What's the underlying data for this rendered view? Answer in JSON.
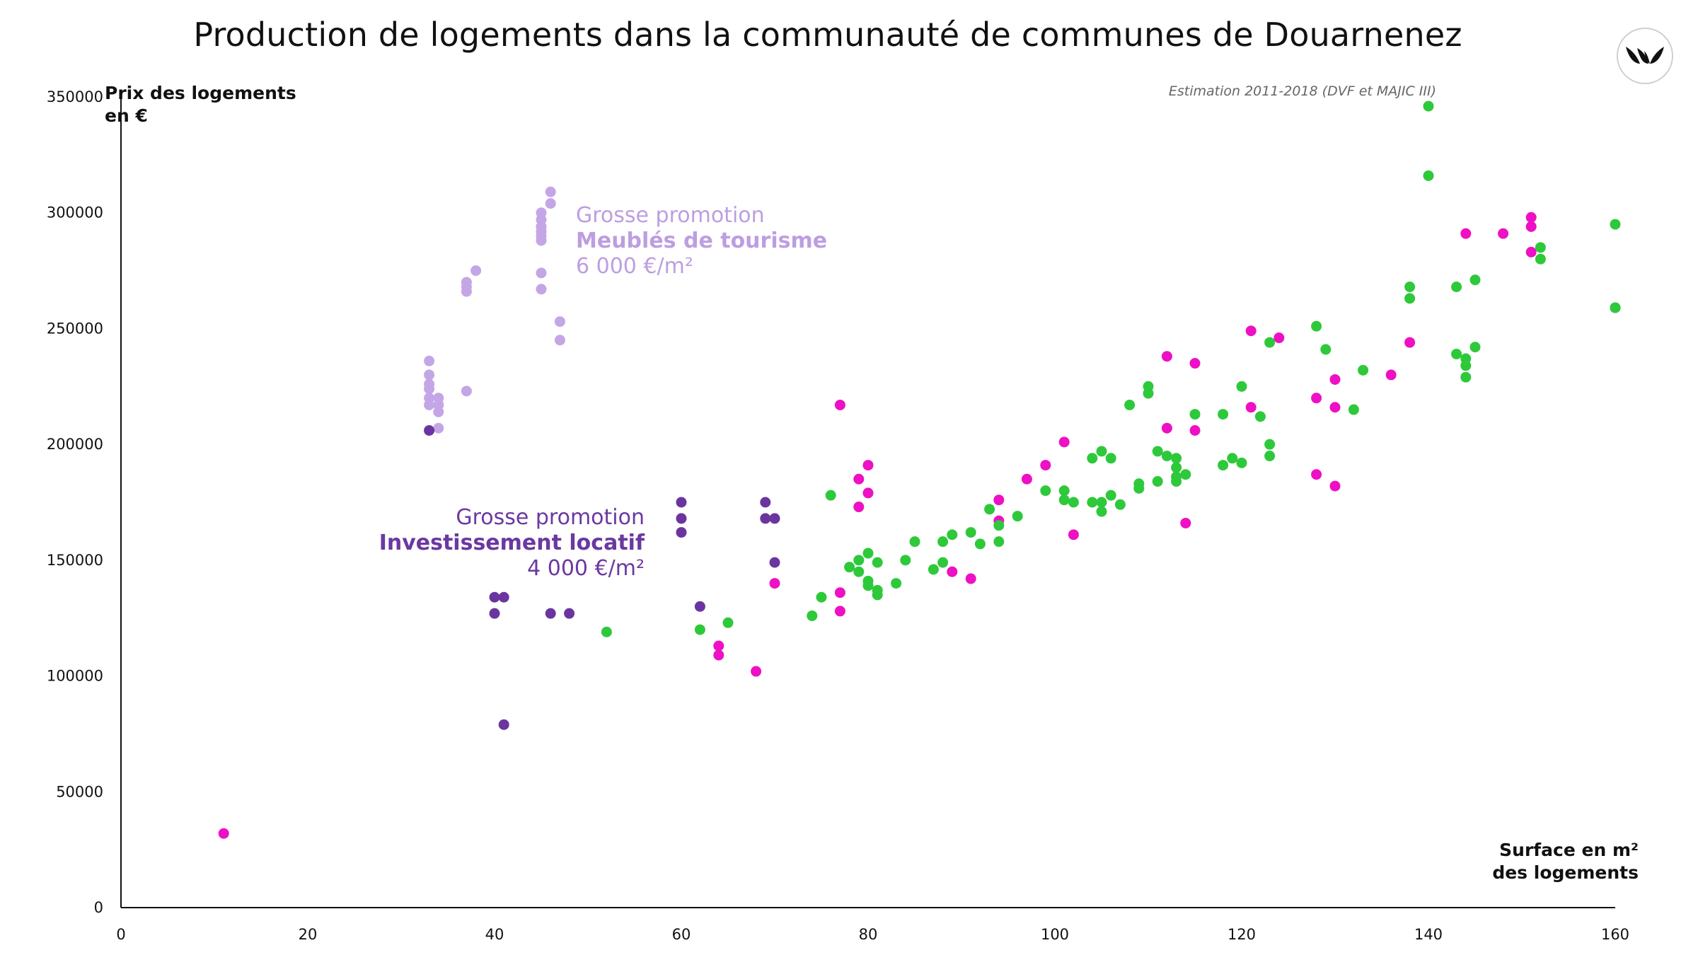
{
  "chart_data": {
    "type": "scatter",
    "title": "Production de logements dans la communauté de communes de Douarnenez",
    "subtitle": "Estimation 2011-2018 (DVF et MAJIC III)",
    "xlabel": "Surface en m²\ndes logements",
    "ylabel": "Prix des logements\nen €",
    "xlim": [
      0,
      160
    ],
    "ylim": [
      0,
      350000
    ],
    "x_ticks": [
      "0",
      "20",
      "40",
      "60",
      "80",
      "100",
      "120",
      "140",
      "160"
    ],
    "y_ticks": [
      "0",
      "50000",
      "100000",
      "150000",
      "200000",
      "250000",
      "300000",
      "350000"
    ],
    "grid": false,
    "annotations": [
      {
        "id": "tourism",
        "lines": [
          "Grosse promotion",
          "Meublés de tourisme",
          "6 000 €/m²"
        ],
        "color": "#bd9ee0"
      },
      {
        "id": "invest",
        "lines": [
          "Grosse promotion",
          "Investissement locatif",
          "4 000 €/m²"
        ],
        "color": "#6b38a0"
      }
    ],
    "series": [
      {
        "color": "#c4a6e6",
        "points": [
          [
            33,
            236000
          ],
          [
            33,
            230000
          ],
          [
            33,
            226000
          ],
          [
            33,
            224000
          ],
          [
            33,
            220000
          ],
          [
            33,
            217000
          ],
          [
            34,
            220000
          ],
          [
            34,
            217000
          ],
          [
            34,
            214000
          ],
          [
            34,
            207000
          ],
          [
            37,
            223000
          ],
          [
            37,
            270000
          ],
          [
            37,
            268000
          ],
          [
            37,
            266000
          ],
          [
            38,
            275000
          ],
          [
            45,
            300000
          ],
          [
            45,
            297000
          ],
          [
            45,
            294000
          ],
          [
            45,
            292000
          ],
          [
            45,
            290000
          ],
          [
            45,
            288000
          ],
          [
            45,
            274000
          ],
          [
            45,
            267000
          ],
          [
            46,
            309000
          ],
          [
            46,
            304000
          ],
          [
            47,
            253000
          ],
          [
            47,
            245000
          ]
        ]
      },
      {
        "color": "#6b35a0",
        "points": [
          [
            33,
            206000
          ],
          [
            40,
            134000
          ],
          [
            40,
            127000
          ],
          [
            41,
            134000
          ],
          [
            41,
            79000
          ],
          [
            46,
            127000
          ],
          [
            48,
            127000
          ],
          [
            60,
            175000
          ],
          [
            60,
            168000
          ],
          [
            60,
            162000
          ],
          [
            62,
            130000
          ],
          [
            69,
            175000
          ],
          [
            69,
            168000
          ],
          [
            70,
            168000
          ],
          [
            70,
            149000
          ],
          [
            160,
            259000
          ]
        ]
      },
      {
        "color": "#ee10c4",
        "points": [
          [
            11,
            32000
          ],
          [
            64,
            113000
          ],
          [
            64,
            109000
          ],
          [
            68,
            102000
          ],
          [
            70,
            140000
          ],
          [
            77,
            217000
          ],
          [
            77,
            136000
          ],
          [
            77,
            128000
          ],
          [
            79,
            185000
          ],
          [
            79,
            173000
          ],
          [
            80,
            191000
          ],
          [
            80,
            179000
          ],
          [
            89,
            145000
          ],
          [
            91,
            142000
          ],
          [
            94,
            176000
          ],
          [
            94,
            167000
          ],
          [
            97,
            185000
          ],
          [
            99,
            191000
          ],
          [
            101,
            201000
          ],
          [
            102,
            161000
          ],
          [
            112,
            238000
          ],
          [
            112,
            207000
          ],
          [
            114,
            166000
          ],
          [
            115,
            235000
          ],
          [
            115,
            206000
          ],
          [
            121,
            249000
          ],
          [
            121,
            216000
          ],
          [
            124,
            246000
          ],
          [
            128,
            220000
          ],
          [
            128,
            187000
          ],
          [
            130,
            228000
          ],
          [
            130,
            216000
          ],
          [
            130,
            182000
          ],
          [
            136,
            230000
          ],
          [
            138,
            244000
          ],
          [
            144,
            291000
          ],
          [
            148,
            291000
          ],
          [
            151,
            298000
          ],
          [
            151,
            294000
          ],
          [
            151,
            283000
          ]
        ]
      },
      {
        "color": "#2ec93a",
        "points": [
          [
            52,
            119000
          ],
          [
            62,
            120000
          ],
          [
            65,
            123000
          ],
          [
            74,
            126000
          ],
          [
            75,
            134000
          ],
          [
            76,
            178000
          ],
          [
            78,
            147000
          ],
          [
            79,
            150000
          ],
          [
            79,
            145000
          ],
          [
            80,
            153000
          ],
          [
            80,
            141000
          ],
          [
            80,
            139000
          ],
          [
            81,
            149000
          ],
          [
            81,
            137000
          ],
          [
            81,
            135000
          ],
          [
            83,
            140000
          ],
          [
            84,
            150000
          ],
          [
            85,
            158000
          ],
          [
            87,
            146000
          ],
          [
            88,
            158000
          ],
          [
            88,
            149000
          ],
          [
            89,
            161000
          ],
          [
            91,
            162000
          ],
          [
            92,
            157000
          ],
          [
            93,
            172000
          ],
          [
            94,
            165000
          ],
          [
            94,
            158000
          ],
          [
            96,
            169000
          ],
          [
            99,
            180000
          ],
          [
            101,
            180000
          ],
          [
            101,
            176000
          ],
          [
            102,
            175000
          ],
          [
            104,
            194000
          ],
          [
            104,
            175000
          ],
          [
            105,
            197000
          ],
          [
            105,
            175000
          ],
          [
            105,
            171000
          ],
          [
            106,
            194000
          ],
          [
            106,
            178000
          ],
          [
            107,
            174000
          ],
          [
            108,
            217000
          ],
          [
            109,
            183000
          ],
          [
            109,
            181000
          ],
          [
            110,
            225000
          ],
          [
            110,
            222000
          ],
          [
            111,
            197000
          ],
          [
            111,
            184000
          ],
          [
            112,
            195000
          ],
          [
            113,
            194000
          ],
          [
            113,
            190000
          ],
          [
            113,
            186000
          ],
          [
            113,
            184000
          ],
          [
            114,
            187000
          ],
          [
            115,
            213000
          ],
          [
            118,
            213000
          ],
          [
            118,
            191000
          ],
          [
            119,
            194000
          ],
          [
            120,
            225000
          ],
          [
            120,
            192000
          ],
          [
            122,
            212000
          ],
          [
            123,
            244000
          ],
          [
            123,
            200000
          ],
          [
            123,
            195000
          ],
          [
            128,
            251000
          ],
          [
            129,
            241000
          ],
          [
            132,
            215000
          ],
          [
            133,
            232000
          ],
          [
            138,
            268000
          ],
          [
            138,
            263000
          ],
          [
            140,
            346000
          ],
          [
            140,
            316000
          ],
          [
            143,
            268000
          ],
          [
            143,
            239000
          ],
          [
            144,
            237000
          ],
          [
            144,
            234000
          ],
          [
            144,
            229000
          ],
          [
            145,
            271000
          ],
          [
            145,
            242000
          ],
          [
            152,
            285000
          ],
          [
            152,
            280000
          ],
          [
            160,
            295000
          ],
          [
            160,
            259000
          ]
        ]
      }
    ]
  }
}
